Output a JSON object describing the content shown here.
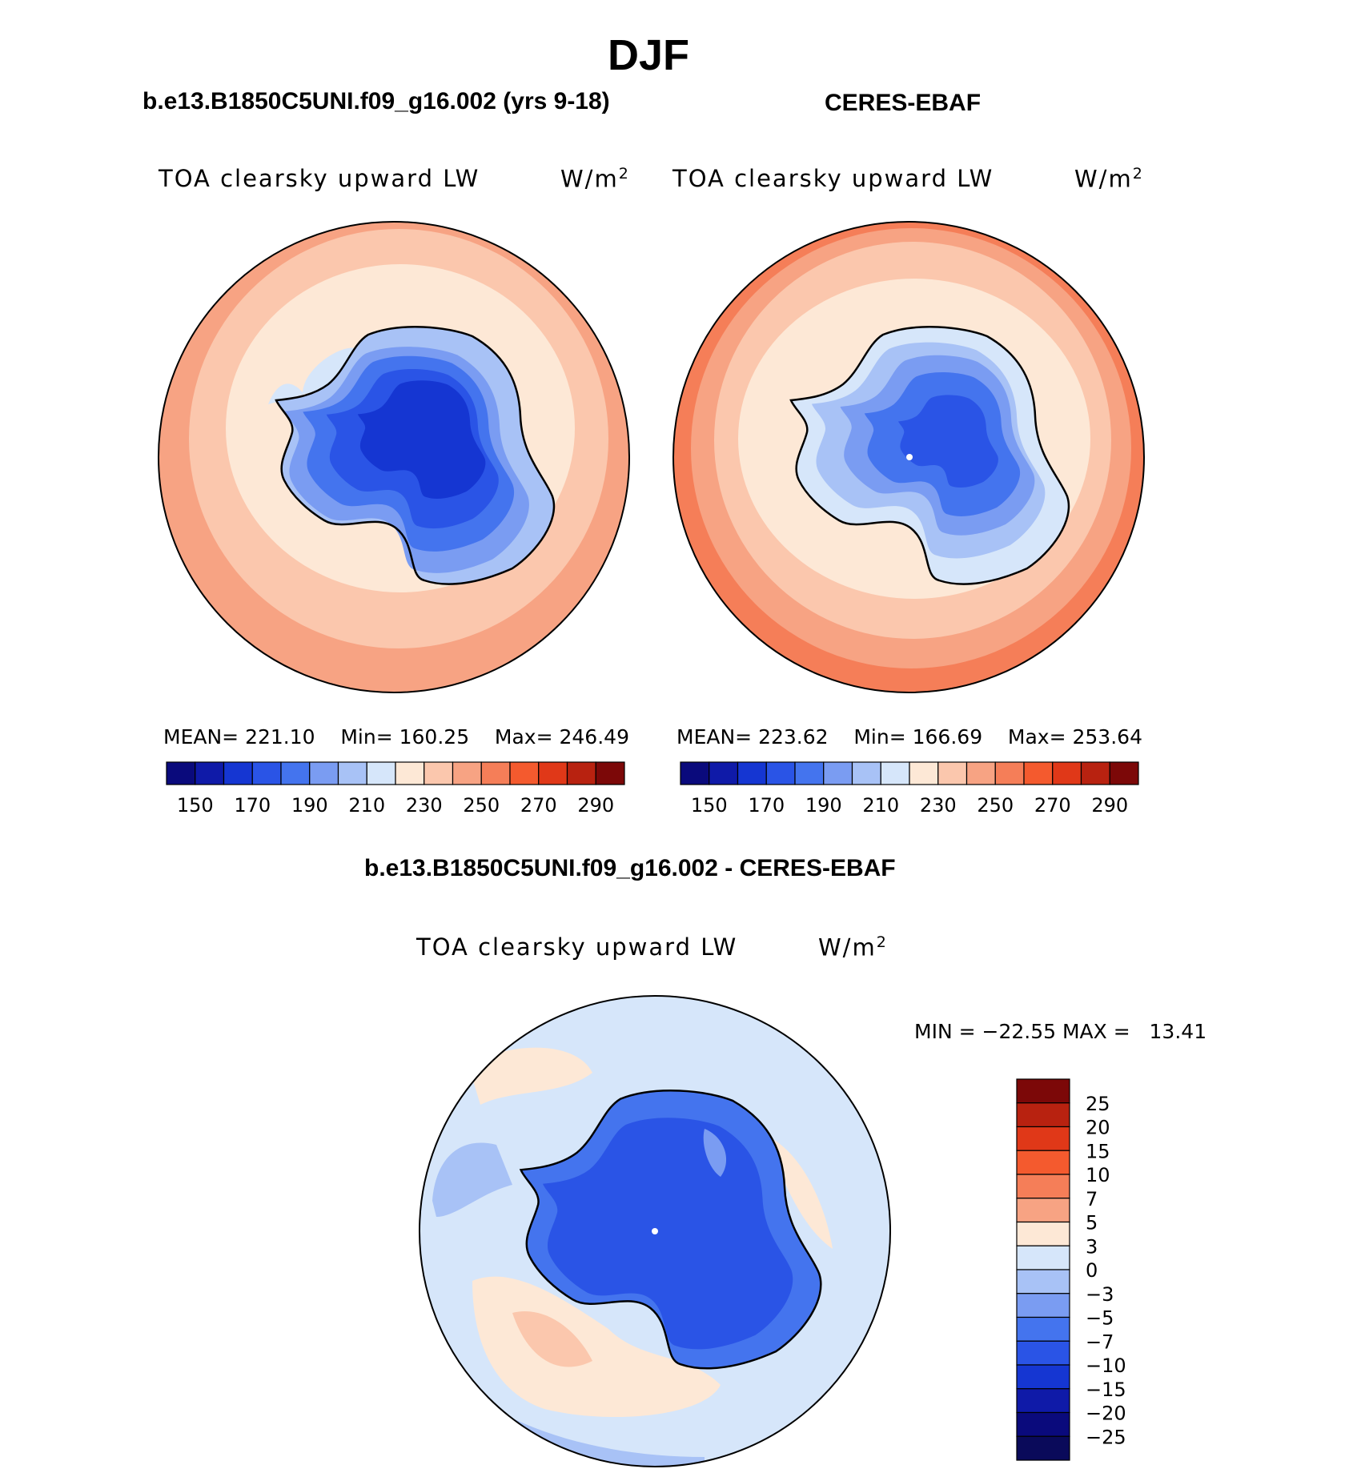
{
  "figure": {
    "title": "DJF"
  },
  "panels": [
    {
      "id": "model",
      "heading": "b.e13.B1850C5UNI.f09_g16.002 (yrs 9-18)",
      "variable": "TOA clearsky upward LW",
      "units_base": "W/m",
      "units_exp": "2",
      "stats": {
        "mean_label": "MEAN=",
        "mean": "221.10",
        "min_label": "Min=",
        "min": "160.25",
        "max_label": "Max=",
        "max": "246.49"
      },
      "colorbar": {
        "colors": [
          "#0a0a7c",
          "#0f1aa8",
          "#1536d2",
          "#2a54e6",
          "#4474ee",
          "#7a9cf2",
          "#a8c2f6",
          "#d6e6fa",
          "#fde8d6",
          "#fbc7ad",
          "#f7a383",
          "#f57e58",
          "#f45a2e",
          "#e03818",
          "#b82210",
          "#7c0808"
        ],
        "tick_labels": [
          "150",
          "170",
          "190",
          "210",
          "230",
          "250",
          "270",
          "290"
        ]
      }
    },
    {
      "id": "obs",
      "heading": "CERES-EBAF",
      "variable": "TOA clearsky upward LW",
      "units_base": "W/m",
      "units_exp": "2",
      "stats": {
        "mean_label": "MEAN=",
        "mean": "223.62",
        "min_label": "Min=",
        "min": "166.69",
        "max_label": "Max=",
        "max": "253.64"
      },
      "colorbar": {
        "colors": [
          "#0a0a7c",
          "#0f1aa8",
          "#1536d2",
          "#2a54e6",
          "#4474ee",
          "#7a9cf2",
          "#a8c2f6",
          "#d6e6fa",
          "#fde8d6",
          "#fbc7ad",
          "#f7a383",
          "#f57e58",
          "#f45a2e",
          "#e03818",
          "#b82210",
          "#7c0808"
        ],
        "tick_labels": [
          "150",
          "170",
          "190",
          "210",
          "230",
          "250",
          "270",
          "290"
        ]
      }
    },
    {
      "id": "diff",
      "heading": "b.e13.B1850C5UNI.f09_g16.002 - CERES-EBAF",
      "variable": "TOA clearsky upward LW",
      "units_base": "W/m",
      "units_exp": "2",
      "stats": {
        "min_label": "MIN =",
        "min": "−22.55",
        "max_label": "MAX =",
        "max": "13.41"
      },
      "colorbar": {
        "colors": [
          "#7c0808",
          "#b82210",
          "#e03818",
          "#f45a2e",
          "#f57e58",
          "#f7a383",
          "#fde8d6",
          "#d6e6fa",
          "#a8c2f6",
          "#7a9cf2",
          "#4474ee",
          "#2a54e6",
          "#1536d2",
          "#0f1aa8",
          "#0a0a7c",
          "#0a0a5a"
        ],
        "tick_labels": [
          "25",
          "20",
          "15",
          "10",
          "7",
          "5",
          "3",
          "0",
          "−3",
          "−5",
          "−7",
          "−10",
          "−15",
          "−20",
          "−25"
        ]
      }
    }
  ]
}
